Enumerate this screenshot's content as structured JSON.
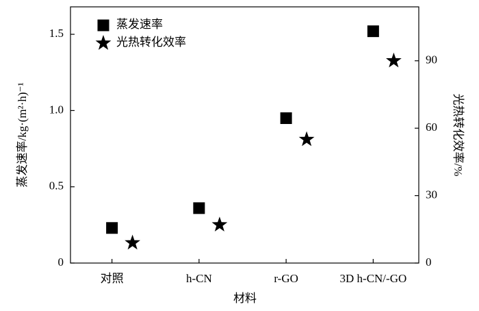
{
  "chart_data": {
    "type": "scatter",
    "x_label": "材料",
    "y_label": "蒸发速率/kg·(m²·h)⁻¹",
    "y2_label": "光热转化效率/%",
    "categories": [
      "对照",
      "h-CN",
      "r-GO",
      "3D h-CN/-GO"
    ],
    "series": [
      {
        "name": "蒸发速率",
        "color": "#000000",
        "marker": "square",
        "values": [
          0.23,
          0.36,
          0.95,
          1.52
        ]
      },
      {
        "name": "光热转化效率",
        "color": "#000000",
        "marker": "star",
        "axis": "y2",
        "values": [
          9,
          17,
          55,
          90
        ]
      }
    ],
    "ylim": [
      0,
      1.68
    ],
    "yticks": [
      0,
      0.5,
      {
        "value": 1,
        "label": "1.0"
      },
      1.5
    ],
    "y2lim": [
      0,
      114
    ],
    "y2ticks": [
      0,
      30,
      60,
      90
    ],
    "legend": "top-left"
  }
}
